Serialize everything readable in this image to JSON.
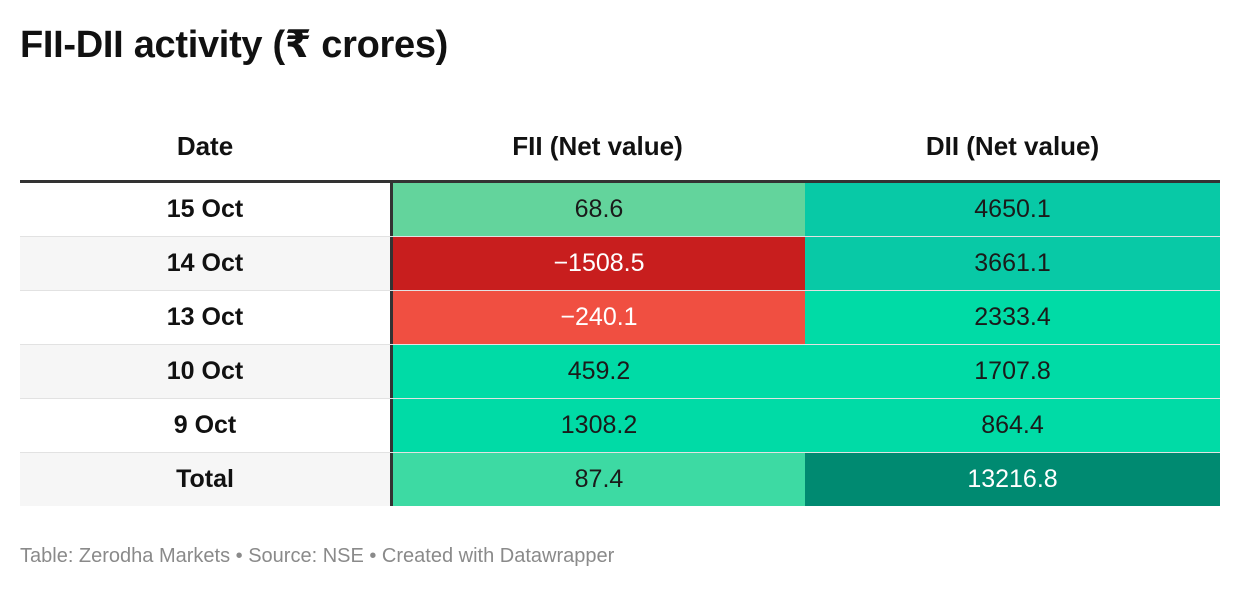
{
  "title": "FII-DII activity (₹ crores)",
  "chart_data": {
    "type": "table",
    "title": "FII-DII activity (₹ crores)",
    "columns": [
      "Date",
      "FII (Net value)",
      "DII (Net value)"
    ],
    "rows": [
      {
        "date": "15 Oct",
        "fii": "68.6",
        "dii": "4650.1",
        "fii_color": "#63d49c",
        "dii_color": "#08c9a6"
      },
      {
        "date": "14 Oct",
        "fii": "−1508.5",
        "dii": "3661.1",
        "fii_color": "#c81e1e",
        "dii_color": "#08c9a6"
      },
      {
        "date": "13 Oct",
        "fii": "−240.1",
        "dii": "2333.4",
        "fii_color": "#f04f41",
        "dii_color": "#00dba6"
      },
      {
        "date": "10 Oct",
        "fii": "459.2",
        "dii": "1707.8",
        "fii_color": "#00dba6",
        "dii_color": "#00dba6"
      },
      {
        "date": "9 Oct",
        "fii": "1308.2",
        "dii": "864.4",
        "fii_color": "#00dba6",
        "dii_color": "#00dba6"
      }
    ],
    "total": {
      "date": "Total",
      "fii": "87.4",
      "dii": "13216.8",
      "fii_color": "#3ddaa3",
      "dii_color": "#008a71"
    }
  },
  "footer": "Table: Zerodha Markets • Source: NSE • Created with Datawrapper"
}
